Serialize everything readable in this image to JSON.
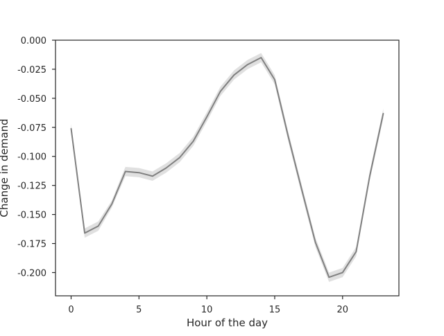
{
  "chart_data": {
    "type": "line",
    "title": "",
    "xlabel": "Hour of the day",
    "ylabel": "Change in demand",
    "xlim": [
      -1.15,
      24.15
    ],
    "ylim": [
      -0.22,
      0.0
    ],
    "xticks": [
      0,
      5,
      10,
      15,
      20
    ],
    "xtick_labels": [
      "0",
      "5",
      "10",
      "15",
      "20"
    ],
    "yticks": [
      0.0,
      -0.025,
      -0.05,
      -0.075,
      -0.1,
      -0.125,
      -0.15,
      -0.175,
      -0.2
    ],
    "ytick_labels": [
      "0.000",
      "-0.025",
      "-0.050",
      "-0.075",
      "-0.100",
      "-0.125",
      "-0.150",
      "-0.175",
      "-0.200"
    ],
    "grid": false,
    "legend": "none",
    "line_color": "#808080",
    "band_color": "#e0e0e0",
    "series": [
      {
        "x": [
          0,
          1,
          2,
          3,
          4,
          5,
          6,
          7,
          8,
          9,
          10,
          11,
          12,
          13,
          14,
          15,
          16,
          17,
          18,
          19,
          20,
          21,
          22,
          23
        ],
        "values": [
          -0.076,
          -0.166,
          -0.16,
          -0.141,
          -0.113,
          -0.114,
          -0.117,
          -0.11,
          -0.101,
          -0.087,
          -0.066,
          -0.044,
          -0.03,
          -0.021,
          -0.015,
          -0.034,
          -0.083,
          -0.129,
          -0.174,
          -0.204,
          -0.2,
          -0.182,
          -0.117,
          -0.063
        ],
        "lower": [
          -0.08,
          -0.17,
          -0.164,
          -0.144,
          -0.117,
          -0.118,
          -0.121,
          -0.114,
          -0.105,
          -0.091,
          -0.07,
          -0.048,
          -0.034,
          -0.025,
          -0.019,
          -0.038,
          -0.087,
          -0.133,
          -0.178,
          -0.208,
          -0.204,
          -0.186,
          -0.121,
          -0.067
        ],
        "upper": [
          -0.072,
          -0.162,
          -0.156,
          -0.138,
          -0.109,
          -0.11,
          -0.113,
          -0.106,
          -0.097,
          -0.083,
          -0.062,
          -0.04,
          -0.026,
          -0.017,
          -0.011,
          -0.03,
          -0.079,
          -0.125,
          -0.17,
          -0.2,
          -0.196,
          -0.178,
          -0.113,
          -0.059
        ]
      }
    ]
  }
}
